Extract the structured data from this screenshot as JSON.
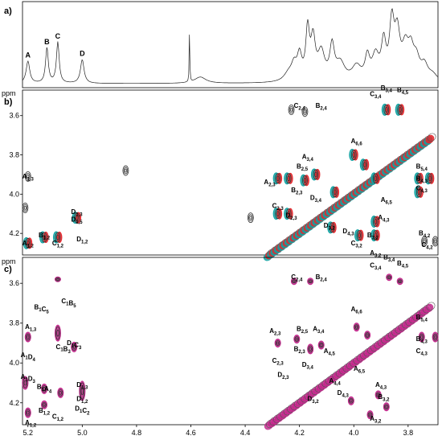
{
  "figure": {
    "panels": [
      {
        "id": "a",
        "label": "a)"
      },
      {
        "id": "b",
        "label": "b)",
        "y_unit": "ppm"
      },
      {
        "id": "c",
        "label": "c)",
        "y_unit": "ppm"
      }
    ],
    "colors": {
      "black": "#000000",
      "grey": "#555555",
      "red": "#e4262b",
      "teal": "#13a3a3",
      "magenta": "#c2278b"
    }
  },
  "chart_data": [
    {
      "type": "line",
      "panel": "a",
      "xlim": [
        5.22,
        3.69
      ],
      "peaks": [
        {
          "label": "A",
          "x": 5.2,
          "height": 0.28
        },
        {
          "label": "B",
          "x": 5.13,
          "height": 0.45
        },
        {
          "label": "C",
          "x": 5.09,
          "height": 0.52
        },
        {
          "label": "D",
          "x": 5.0,
          "height": 0.3
        },
        {
          "label": "",
          "x": 4.605,
          "height": 0.68
        }
      ]
    },
    {
      "type": "scatter",
      "panel": "b",
      "xlim": [
        5.22,
        3.69
      ],
      "ylim": [
        3.47,
        4.31
      ],
      "yticks": [
        3.6,
        3.8,
        4.0,
        4.2
      ],
      "annotations": [
        {
          "text": "A",
          "sub": "1,3",
          "x": 5.2,
          "y": 3.92
        },
        {
          "text": "A",
          "sub": "1,2",
          "x": 5.2,
          "y": 4.26
        },
        {
          "text": "B",
          "sub": "1,2",
          "x": 5.14,
          "y": 4.22
        },
        {
          "text": "C",
          "sub": "1,2",
          "x": 5.09,
          "y": 4.26
        },
        {
          "text": "D",
          "sub": "1,3",
          "x": 5.02,
          "y": 4.1
        },
        {
          "text": "D",
          "sub": "1,5",
          "x": 5.02,
          "y": 4.14
        },
        {
          "text": "D",
          "sub": "1,2",
          "x": 5.0,
          "y": 4.24
        },
        {
          "text": "C",
          "sub": "2,4",
          "x": 4.2,
          "y": 3.56
        },
        {
          "text": "B",
          "sub": "2,4",
          "x": 4.12,
          "y": 3.56
        },
        {
          "text": "C",
          "sub": "3,4",
          "x": 3.92,
          "y": 3.5
        },
        {
          "text": "B",
          "sub": "3,4",
          "x": 3.88,
          "y": 3.47
        },
        {
          "text": "B",
          "sub": "4,5",
          "x": 3.82,
          "y": 3.48
        },
        {
          "text": "A",
          "sub": "3,4",
          "x": 4.17,
          "y": 3.82
        },
        {
          "text": "B",
          "sub": "2,5",
          "x": 4.19,
          "y": 3.87
        },
        {
          "text": "A",
          "sub": "2,3",
          "x": 4.31,
          "y": 3.95
        },
        {
          "text": "B",
          "sub": "2,3",
          "x": 4.21,
          "y": 3.99
        },
        {
          "text": "D",
          "sub": "3,4",
          "x": 4.14,
          "y": 4.03
        },
        {
          "text": "C",
          "sub": "2,3",
          "x": 4.28,
          "y": 4.07
        },
        {
          "text": "D",
          "sub": "2,3",
          "x": 4.23,
          "y": 4.12
        },
        {
          "text": "A",
          "sub": "6,6",
          "x": 3.99,
          "y": 3.74
        },
        {
          "text": "A",
          "sub": "6,5",
          "x": 3.88,
          "y": 4.04
        },
        {
          "text": "B",
          "sub": "5,4",
          "x": 3.75,
          "y": 3.87
        },
        {
          "text": "B",
          "sub": "4,3",
          "x": 3.75,
          "y": 3.93
        },
        {
          "text": "C",
          "sub": "4,3",
          "x": 3.75,
          "y": 3.98
        },
        {
          "text": "A",
          "sub": "4,3",
          "x": 3.89,
          "y": 4.13
        },
        {
          "text": "D",
          "sub": "3,2",
          "x": 4.09,
          "y": 4.17
        },
        {
          "text": "D",
          "sub": "4,3",
          "x": 4.02,
          "y": 4.2
        },
        {
          "text": "B",
          "sub": "3,2",
          "x": 3.93,
          "y": 4.22
        },
        {
          "text": "C",
          "sub": "3,2",
          "x": 3.99,
          "y": 4.26
        },
        {
          "text": "A",
          "sub": "3,2",
          "x": 3.92,
          "y": 4.31
        },
        {
          "text": "B",
          "sub": "4,2",
          "x": 3.74,
          "y": 4.21
        },
        {
          "text": "C",
          "sub": "4,2",
          "x": 3.73,
          "y": 4.27
        }
      ]
    },
    {
      "type": "scatter",
      "panel": "c",
      "xlim": [
        5.22,
        3.69
      ],
      "ylim": [
        3.47,
        4.31
      ],
      "xticks": [
        5.2,
        5.0,
        4.8,
        4.6,
        4.4,
        4.2,
        4.0,
        3.8
      ],
      "yticks": [
        3.6,
        3.8,
        4.0,
        4.2
      ],
      "annotations": [
        {
          "parts": [
            [
              "B",
              "1"
            ],
            [
              "C",
              "5"
            ]
          ],
          "x": 5.15,
          "y": 3.73
        },
        {
          "parts": [
            [
              "C",
              "1"
            ],
            [
              "B",
              "5"
            ]
          ],
          "x": 5.05,
          "y": 3.7
        },
        {
          "parts": [
            [
              "A",
              "1,3"
            ]
          ],
          "x": 5.19,
          "y": 3.83
        },
        {
          "parts": [
            [
              "A",
              "1"
            ],
            [
              "D",
              "4"
            ]
          ],
          "x": 5.2,
          "y": 3.97
        },
        {
          "parts": [
            [
              "C",
              "1"
            ],
            [
              "B",
              "3"
            ]
          ],
          "x": 5.07,
          "y": 3.93
        },
        {
          "parts": [
            [
              "D",
              "1"
            ],
            [
              "C",
              "3"
            ]
          ],
          "x": 5.03,
          "y": 3.91
        },
        {
          "parts": [
            [
              "A",
              "1"
            ],
            [
              "D",
              "3"
            ]
          ],
          "x": 5.2,
          "y": 4.08
        },
        {
          "parts": [
            [
              "B",
              "1"
            ],
            [
              "A",
              "4"
            ]
          ],
          "x": 5.14,
          "y": 4.13
        },
        {
          "parts": [
            [
              "D",
              "1,3"
            ]
          ],
          "x": 5.0,
          "y": 4.12
        },
        {
          "parts": [
            [
              "D",
              "1,2"
            ]
          ],
          "x": 5.0,
          "y": 4.19
        },
        {
          "parts": [
            [
              "D",
              "1"
            ],
            [
              "C",
              "2"
            ]
          ],
          "x": 5.0,
          "y": 4.24
        },
        {
          "parts": [
            [
              "B",
              "1,2"
            ]
          ],
          "x": 5.14,
          "y": 4.25
        },
        {
          "parts": [
            [
              "C",
              "1,2"
            ]
          ],
          "x": 5.09,
          "y": 4.28
        },
        {
          "parts": [
            [
              "A",
              "1,2"
            ]
          ],
          "x": 5.19,
          "y": 4.31
        },
        {
          "parts": [
            [
              "C",
              "2,4"
            ]
          ],
          "x": 4.21,
          "y": 3.58
        },
        {
          "parts": [
            [
              "B",
              "2,4"
            ]
          ],
          "x": 4.12,
          "y": 3.58
        },
        {
          "parts": [
            [
              "C",
              "3,4"
            ]
          ],
          "x": 3.92,
          "y": 3.52
        },
        {
          "parts": [
            [
              "B",
              "3,4"
            ]
          ],
          "x": 3.87,
          "y": 3.48
        },
        {
          "parts": [
            [
              "B",
              "4,5"
            ]
          ],
          "x": 3.82,
          "y": 3.51
        },
        {
          "parts": [
            [
              "A",
              "6,6"
            ]
          ],
          "x": 3.99,
          "y": 3.74
        },
        {
          "parts": [
            [
              "B",
              "5,4"
            ]
          ],
          "x": 3.75,
          "y": 3.78
        },
        {
          "parts": [
            [
              "A",
              "2,3"
            ]
          ],
          "x": 4.29,
          "y": 3.85
        },
        {
          "parts": [
            [
              "B",
              "2,5"
            ]
          ],
          "x": 4.19,
          "y": 3.84
        },
        {
          "parts": [
            [
              "A",
              "3,4"
            ]
          ],
          "x": 4.13,
          "y": 3.84
        },
        {
          "parts": [
            [
              "B",
              "2,3"
            ]
          ],
          "x": 4.2,
          "y": 3.94
        },
        {
          "parts": [
            [
              "A",
              "4,5"
            ]
          ],
          "x": 4.09,
          "y": 3.95
        },
        {
          "parts": [
            [
              "C",
              "2,3"
            ]
          ],
          "x": 4.28,
          "y": 4.0
        },
        {
          "parts": [
            [
              "D",
              "3,4"
            ]
          ],
          "x": 4.17,
          "y": 4.02
        },
        {
          "parts": [
            [
              "A",
              "6,5"
            ]
          ],
          "x": 3.98,
          "y": 4.04
        },
        {
          "parts": [
            [
              "B",
              "4,3"
            ]
          ],
          "x": 3.75,
          "y": 3.89
        },
        {
          "parts": [
            [
              "C",
              "4,3"
            ]
          ],
          "x": 3.75,
          "y": 3.95
        },
        {
          "parts": [
            [
              "D",
              "2,3"
            ]
          ],
          "x": 4.26,
          "y": 4.07
        },
        {
          "parts": [
            [
              "A",
              "4,4"
            ]
          ],
          "x": 4.07,
          "y": 4.1
        },
        {
          "parts": [
            [
              "A",
              "4,3"
            ]
          ],
          "x": 3.9,
          "y": 4.12
        },
        {
          "parts": [
            [
              "D",
              "4,3"
            ]
          ],
          "x": 4.04,
          "y": 4.16
        },
        {
          "parts": [
            [
              "B",
              "3,2"
            ]
          ],
          "x": 3.89,
          "y": 4.18
        },
        {
          "parts": [
            [
              "D",
              "3,2"
            ]
          ],
          "x": 4.15,
          "y": 4.19
        },
        {
          "parts": [
            [
              "A",
              "3,2"
            ]
          ],
          "x": 3.92,
          "y": 4.29
        }
      ]
    }
  ]
}
